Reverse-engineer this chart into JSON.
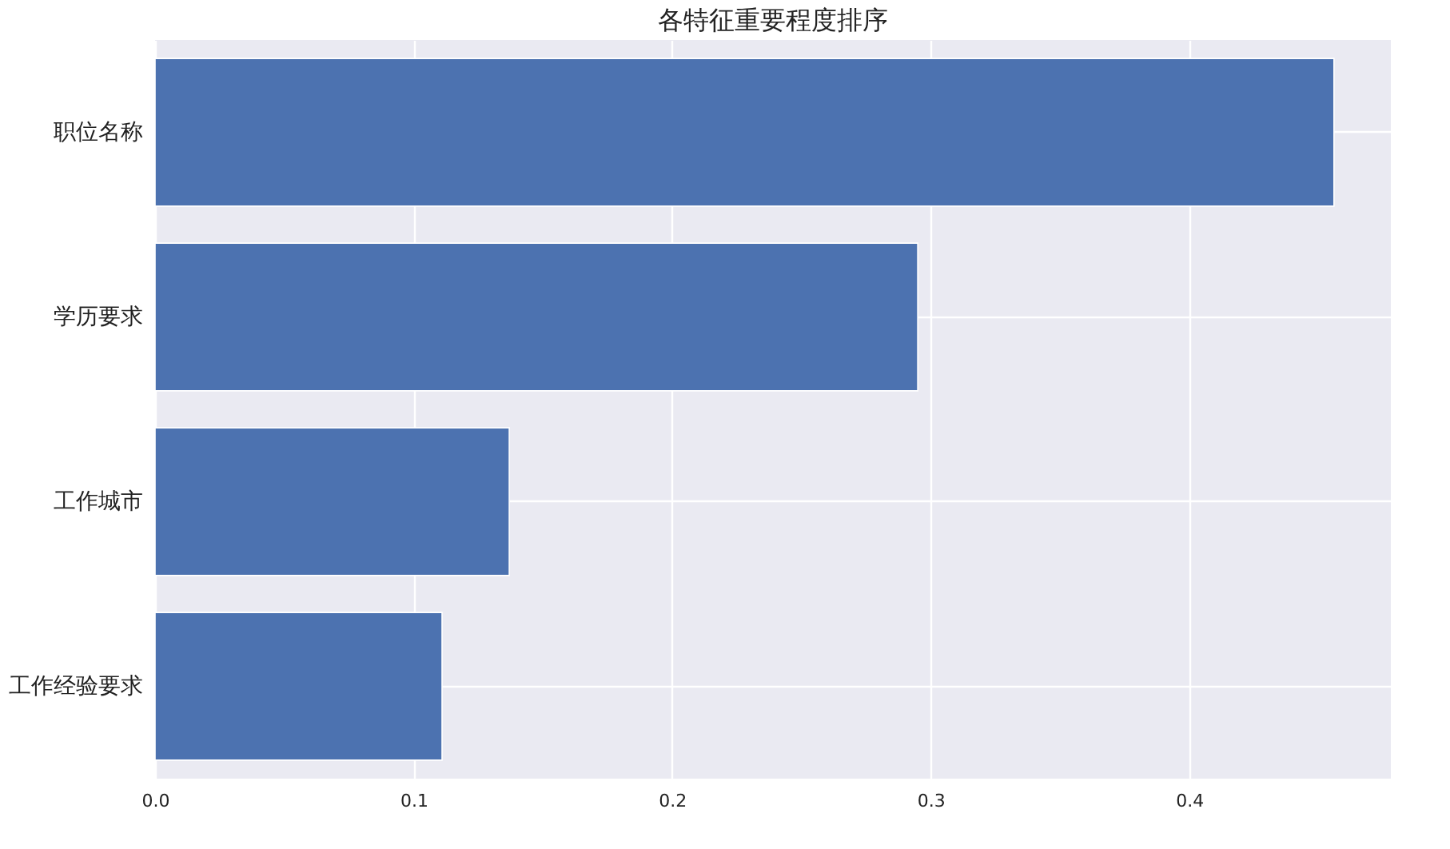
{
  "chart_data": {
    "type": "bar",
    "orientation": "horizontal",
    "title": "各特征重要程度排序",
    "categories": [
      "职位名称",
      "学历要求",
      "工作城市",
      "工作经验要求"
    ],
    "values": [
      0.456,
      0.295,
      0.137,
      0.111
    ],
    "color": "#4c72b0",
    "xlim": [
      0,
      0.478
    ],
    "xticks": [
      {
        "value": 0,
        "label": "0.0"
      },
      {
        "value": 0.1,
        "label": "0.1"
      },
      {
        "value": 0.2,
        "label": "0.2"
      },
      {
        "value": 0.3,
        "label": "0.3"
      },
      {
        "value": 0.4,
        "label": "0.4"
      }
    ],
    "grid": true
  }
}
